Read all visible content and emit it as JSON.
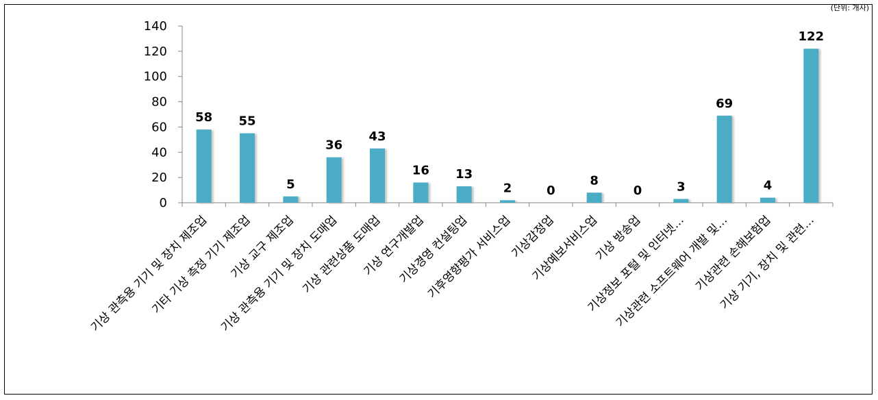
{
  "chart_data": {
    "type": "bar",
    "title": "",
    "xlabel": "",
    "ylabel": "",
    "ylim": [
      0,
      140
    ],
    "yticks": [
      0,
      20,
      40,
      60,
      80,
      100,
      120,
      140
    ],
    "grid": false,
    "bar_color": "#4bacc6",
    "categories": [
      "기상 관측용 기기 및 장치 제조업",
      "기타 기상 측정 기기 제조업",
      "기상 교구 제조업",
      "기상 관측용 기기 및 장치 도매업",
      "기상 관련상품 도매업",
      "기상 연구개발업",
      "기상경영 컨설팅업",
      "기후영향평가 서비스업",
      "기상감정업",
      "기상예보서비스업",
      "기상 방송업",
      "기상정보 포털 및 인터넷…",
      "기상관련 소프트웨어 개발 및…",
      "기상관련 손해보험업",
      "기상 기기, 장치 및 관련…"
    ],
    "values": [
      58,
      55,
      5,
      36,
      43,
      16,
      13,
      2,
      0,
      8,
      0,
      3,
      69,
      4,
      122
    ]
  },
  "top_note": "(단위: 개사)"
}
